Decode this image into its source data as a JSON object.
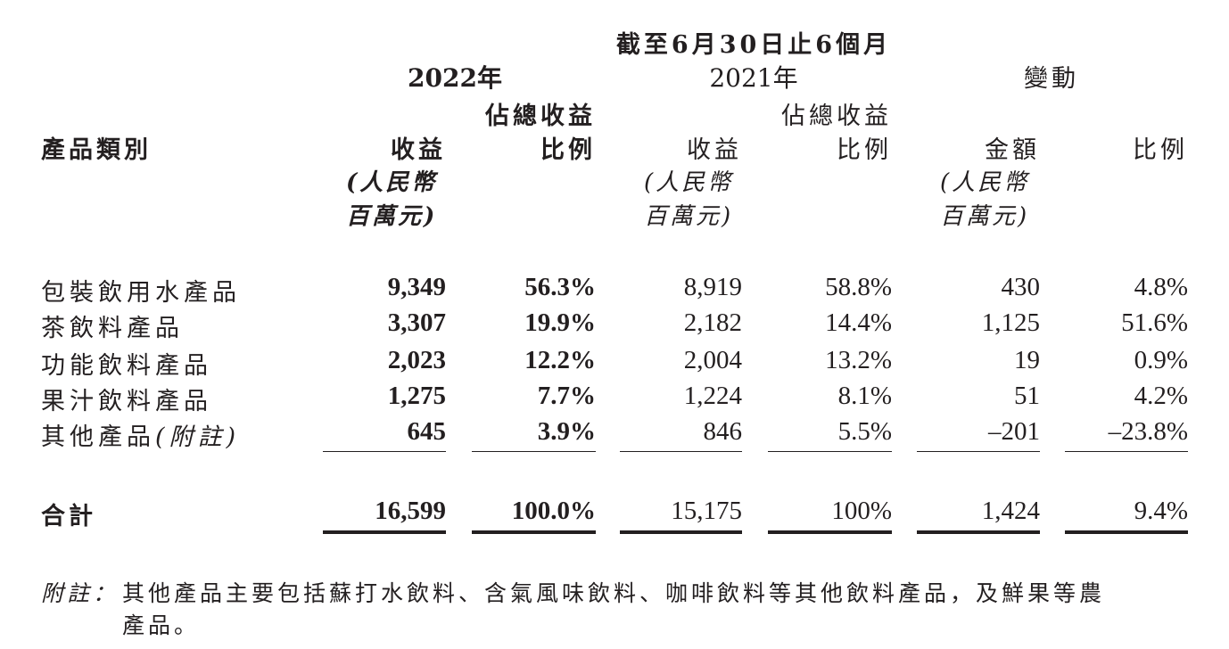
{
  "header": {
    "period": "截至6月30日止6個月",
    "year_2022": "2022年",
    "year_2021": "2021年",
    "change": "變動",
    "share_of_revenue": "佔總收益",
    "category": "產品類別",
    "revenue": "收益",
    "ratio": "比例",
    "amount": "金額",
    "unit_line1": "(人民幣",
    "unit_line2": "百萬元)"
  },
  "rows": [
    {
      "category": "包裝飲用水產品",
      "rev_2022": "9,349",
      "pct_2022": "56.3%",
      "rev_2021": "8,919",
      "pct_2021": "58.8%",
      "chg_amount": "430",
      "chg_pct": "4.8%"
    },
    {
      "category": "茶飲料產品",
      "rev_2022": "3,307",
      "pct_2022": "19.9%",
      "rev_2021": "2,182",
      "pct_2021": "14.4%",
      "chg_amount": "1,125",
      "chg_pct": "51.6%"
    },
    {
      "category": "功能飲料產品",
      "rev_2022": "2,023",
      "pct_2022": "12.2%",
      "rev_2021": "2,004",
      "pct_2021": "13.2%",
      "chg_amount": "19",
      "chg_pct": "0.9%"
    },
    {
      "category": "果汁飲料產品",
      "rev_2022": "1,275",
      "pct_2022": "7.7%",
      "rev_2021": "1,224",
      "pct_2021": "8.1%",
      "chg_amount": "51",
      "chg_pct": "4.2%"
    },
    {
      "category": "其他產品",
      "category_note": "(附註)",
      "rev_2022": "645",
      "pct_2022": "3.9%",
      "rev_2021": "846",
      "pct_2021": "5.5%",
      "chg_amount": "–201",
      "chg_pct": "–23.8%"
    }
  ],
  "total": {
    "label": "合計",
    "rev_2022": "16,599",
    "pct_2022": "100.0%",
    "rev_2021": "15,175",
    "pct_2021": "100%",
    "chg_amount": "1,424",
    "chg_pct": "9.4%"
  },
  "note": {
    "label": "附註：",
    "line1": "其他產品主要包括蘇打水飲料、含氣風味飲料、咖啡飲料等其他飲料產品，及鮮果等農",
    "line2": "產品。"
  }
}
